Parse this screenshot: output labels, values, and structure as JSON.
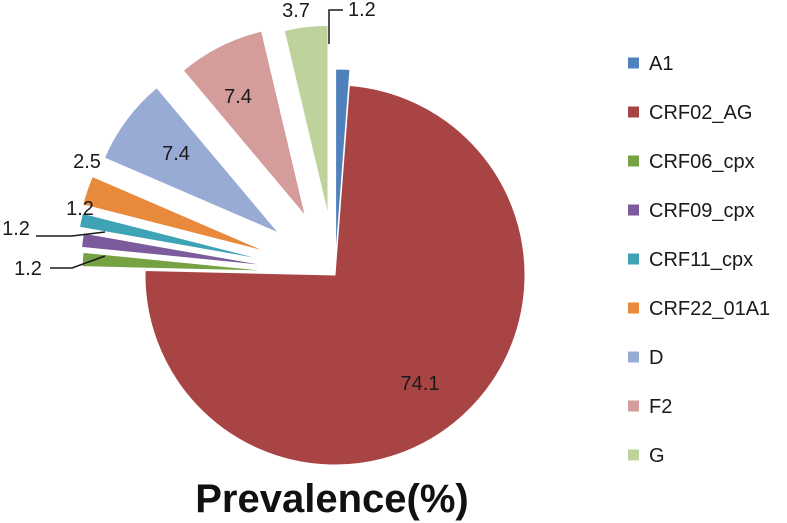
{
  "chart_data": {
    "type": "pie",
    "title": "Prevalence(%)",
    "exploded": true,
    "legend_position": "right",
    "categories": [
      "A1",
      "CRF02_AG",
      "CRF06_cpx",
      "CRF09_cpx",
      "CRF11_cpx",
      "CRF22_01A1",
      "D",
      "F2",
      "G"
    ],
    "values": [
      1.2,
      74.1,
      1.2,
      1.2,
      1.2,
      2.5,
      7.4,
      7.4,
      3.7
    ],
    "data_labels": [
      "1.2",
      "74.1",
      "1.2",
      "1.2",
      "1.2",
      "2.5",
      "7.4",
      "7.4",
      "3.7"
    ],
    "colors": [
      "#4F81BD",
      "#A94444",
      "#77A243",
      "#7B5B9C",
      "#3FA3B6",
      "#E8893B",
      "#98ABD4",
      "#D49C9B",
      "#BDD39B"
    ]
  }
}
